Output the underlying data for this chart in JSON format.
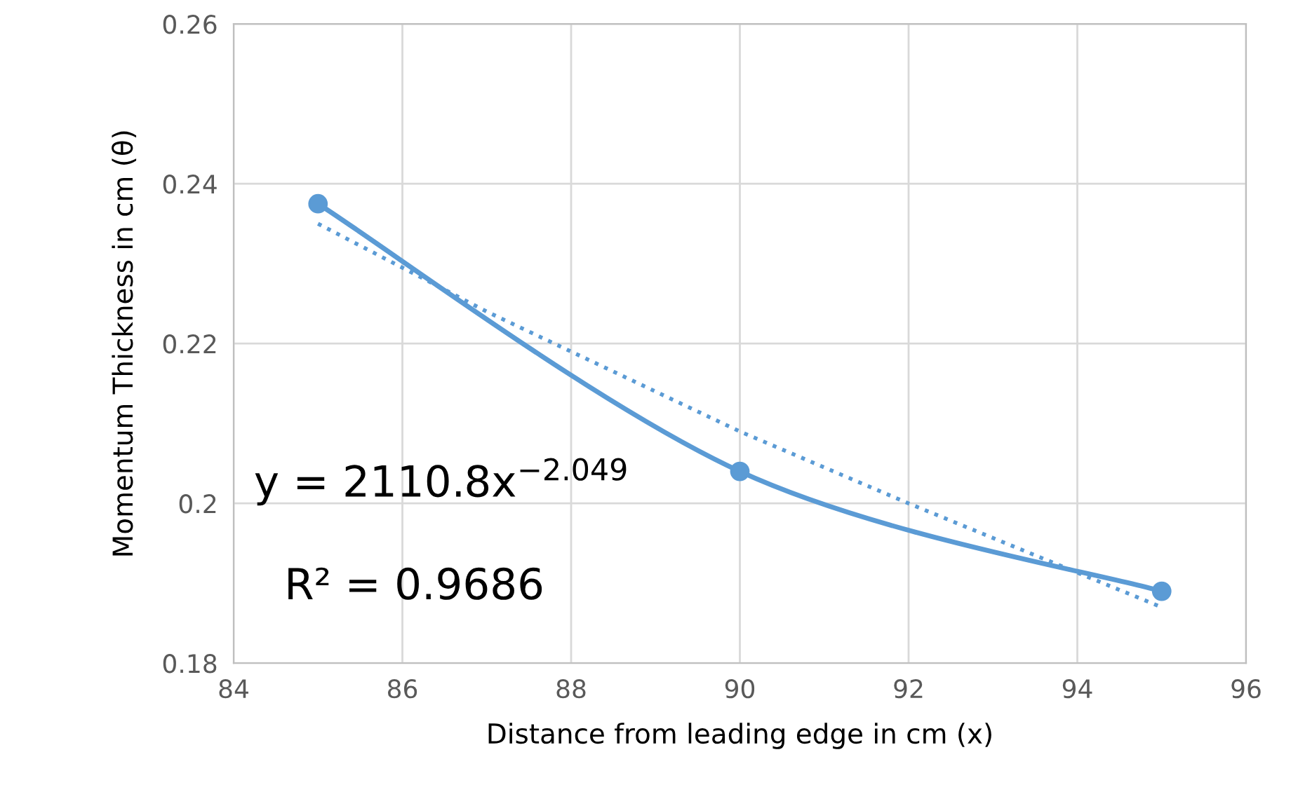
{
  "chart_data": {
    "type": "line",
    "xlabel": "Distance from leading edge in cm (x)",
    "ylabel": "Momentum Thickness in cm (θ)",
    "series": [
      {
        "color": "#5b9bd5",
        "x": [
          85,
          90,
          95
        ],
        "values": [
          0.2375,
          0.204,
          0.189
        ],
        "marker": "circle",
        "line_style": "solid"
      },
      {
        "color": "#5b9bd5",
        "x": [
          85,
          87,
          90,
          92,
          95
        ],
        "values": [
          0.235,
          0.224,
          0.209,
          0.2,
          0.187
        ],
        "marker": "none",
        "line_style": "dotted"
      }
    ],
    "annotations": [
      "y = 2110.8x$^{−2.049}$",
      "R² = 0.9686"
    ],
    "xlim": [
      84,
      96
    ],
    "xticks": [
      84,
      86,
      88,
      90,
      92,
      94,
      96
    ],
    "ylim": [
      0.18,
      0.26
    ],
    "yticks": [
      0.18,
      0.2,
      0.22,
      0.24,
      0.26
    ],
    "grid": true,
    "legend": false
  }
}
